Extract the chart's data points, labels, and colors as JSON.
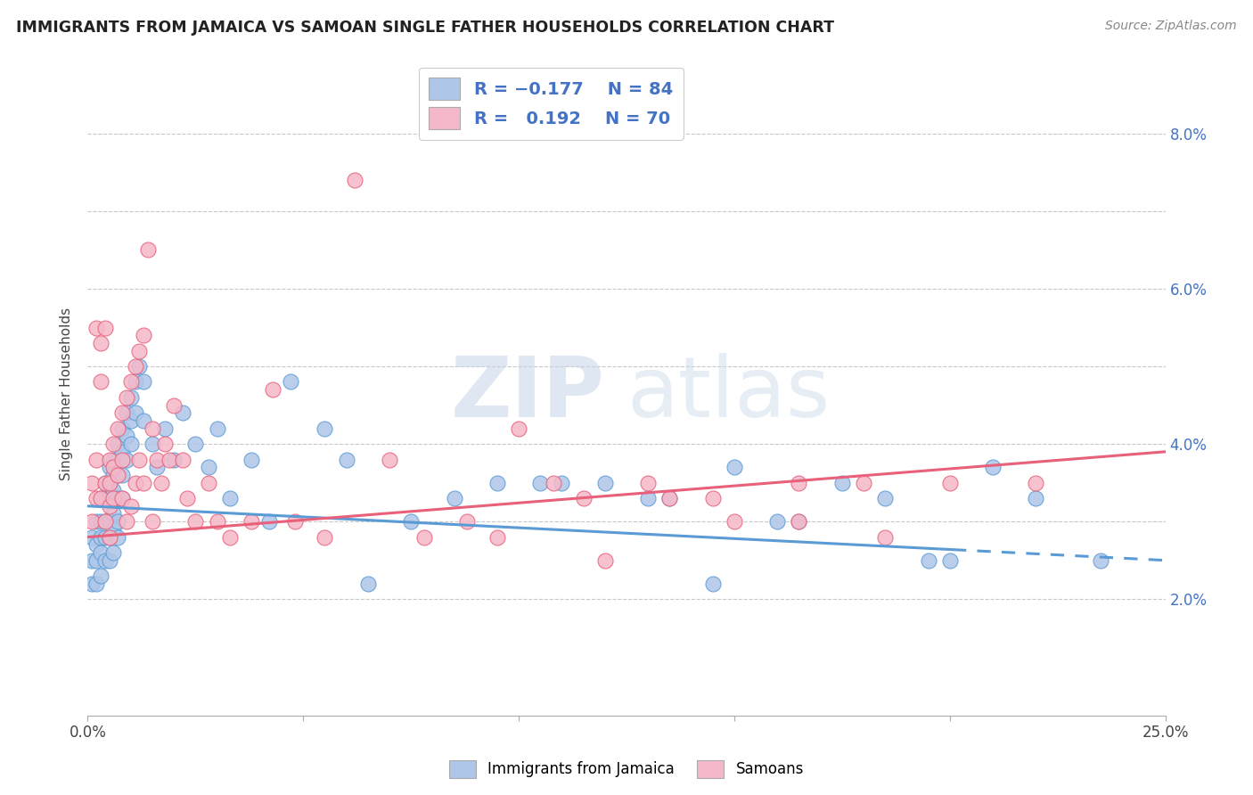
{
  "title": "IMMIGRANTS FROM JAMAICA VS SAMOAN SINGLE FATHER HOUSEHOLDS CORRELATION CHART",
  "source": "Source: ZipAtlas.com",
  "ylabel": "Single Father Households",
  "y_ticks": [
    0.02,
    0.03,
    0.04,
    0.05,
    0.06,
    0.07,
    0.08
  ],
  "y_tick_labels": [
    "2.0%",
    "",
    "4.0%",
    "",
    "6.0%",
    "",
    "8.0%"
  ],
  "x_min": 0.0,
  "x_max": 0.25,
  "y_min": 0.005,
  "y_max": 0.088,
  "color_jamaica": "#aec6e8",
  "color_samoa": "#f5b8c8",
  "color_jamaica_line": "#5b9bd5",
  "color_samoa_line": "#e8607a",
  "color_blue_text": "#4472c4",
  "watermark_zip": "ZIP",
  "watermark_atlas": "atlas",
  "jamaica_scatter_x": [
    0.001,
    0.001,
    0.001,
    0.002,
    0.002,
    0.002,
    0.002,
    0.003,
    0.003,
    0.003,
    0.003,
    0.003,
    0.004,
    0.004,
    0.004,
    0.004,
    0.004,
    0.005,
    0.005,
    0.005,
    0.005,
    0.005,
    0.005,
    0.006,
    0.006,
    0.006,
    0.006,
    0.006,
    0.006,
    0.007,
    0.007,
    0.007,
    0.007,
    0.007,
    0.007,
    0.008,
    0.008,
    0.008,
    0.008,
    0.009,
    0.009,
    0.009,
    0.01,
    0.01,
    0.01,
    0.011,
    0.011,
    0.012,
    0.013,
    0.013,
    0.015,
    0.016,
    0.018,
    0.02,
    0.022,
    0.025,
    0.028,
    0.03,
    0.033,
    0.038,
    0.042,
    0.047,
    0.055,
    0.06,
    0.065,
    0.075,
    0.085,
    0.095,
    0.105,
    0.12,
    0.135,
    0.15,
    0.165,
    0.185,
    0.195,
    0.21,
    0.22,
    0.235,
    0.11,
    0.13,
    0.145,
    0.16,
    0.175,
    0.2
  ],
  "jamaica_scatter_y": [
    0.028,
    0.025,
    0.022,
    0.03,
    0.027,
    0.025,
    0.022,
    0.033,
    0.03,
    0.028,
    0.026,
    0.023,
    0.035,
    0.033,
    0.03,
    0.028,
    0.025,
    0.037,
    0.035,
    0.033,
    0.03,
    0.028,
    0.025,
    0.038,
    0.036,
    0.034,
    0.031,
    0.029,
    0.026,
    0.04,
    0.038,
    0.036,
    0.033,
    0.03,
    0.028,
    0.042,
    0.039,
    0.036,
    0.033,
    0.044,
    0.041,
    0.038,
    0.046,
    0.043,
    0.04,
    0.048,
    0.044,
    0.05,
    0.048,
    0.043,
    0.04,
    0.037,
    0.042,
    0.038,
    0.044,
    0.04,
    0.037,
    0.042,
    0.033,
    0.038,
    0.03,
    0.048,
    0.042,
    0.038,
    0.022,
    0.03,
    0.033,
    0.035,
    0.035,
    0.035,
    0.033,
    0.037,
    0.03,
    0.033,
    0.025,
    0.037,
    0.033,
    0.025,
    0.035,
    0.033,
    0.022,
    0.03,
    0.035,
    0.025
  ],
  "samoa_scatter_x": [
    0.001,
    0.001,
    0.002,
    0.002,
    0.002,
    0.003,
    0.003,
    0.003,
    0.004,
    0.004,
    0.004,
    0.005,
    0.005,
    0.005,
    0.005,
    0.006,
    0.006,
    0.006,
    0.007,
    0.007,
    0.008,
    0.008,
    0.008,
    0.009,
    0.009,
    0.01,
    0.01,
    0.011,
    0.011,
    0.012,
    0.012,
    0.013,
    0.013,
    0.014,
    0.015,
    0.015,
    0.016,
    0.017,
    0.018,
    0.019,
    0.02,
    0.022,
    0.023,
    0.025,
    0.028,
    0.03,
    0.033,
    0.038,
    0.043,
    0.048,
    0.055,
    0.062,
    0.07,
    0.078,
    0.088,
    0.095,
    0.108,
    0.12,
    0.135,
    0.15,
    0.165,
    0.185,
    0.2,
    0.22,
    0.1,
    0.115,
    0.13,
    0.145,
    0.165,
    0.18
  ],
  "samoa_scatter_y": [
    0.035,
    0.03,
    0.038,
    0.033,
    0.055,
    0.053,
    0.048,
    0.033,
    0.055,
    0.035,
    0.03,
    0.038,
    0.035,
    0.032,
    0.028,
    0.04,
    0.037,
    0.033,
    0.042,
    0.036,
    0.044,
    0.038,
    0.033,
    0.046,
    0.03,
    0.048,
    0.032,
    0.05,
    0.035,
    0.052,
    0.038,
    0.054,
    0.035,
    0.065,
    0.042,
    0.03,
    0.038,
    0.035,
    0.04,
    0.038,
    0.045,
    0.038,
    0.033,
    0.03,
    0.035,
    0.03,
    0.028,
    0.03,
    0.047,
    0.03,
    0.028,
    0.074,
    0.038,
    0.028,
    0.03,
    0.028,
    0.035,
    0.025,
    0.033,
    0.03,
    0.035,
    0.028,
    0.035,
    0.035,
    0.042,
    0.033,
    0.035,
    0.033,
    0.03,
    0.035
  ]
}
